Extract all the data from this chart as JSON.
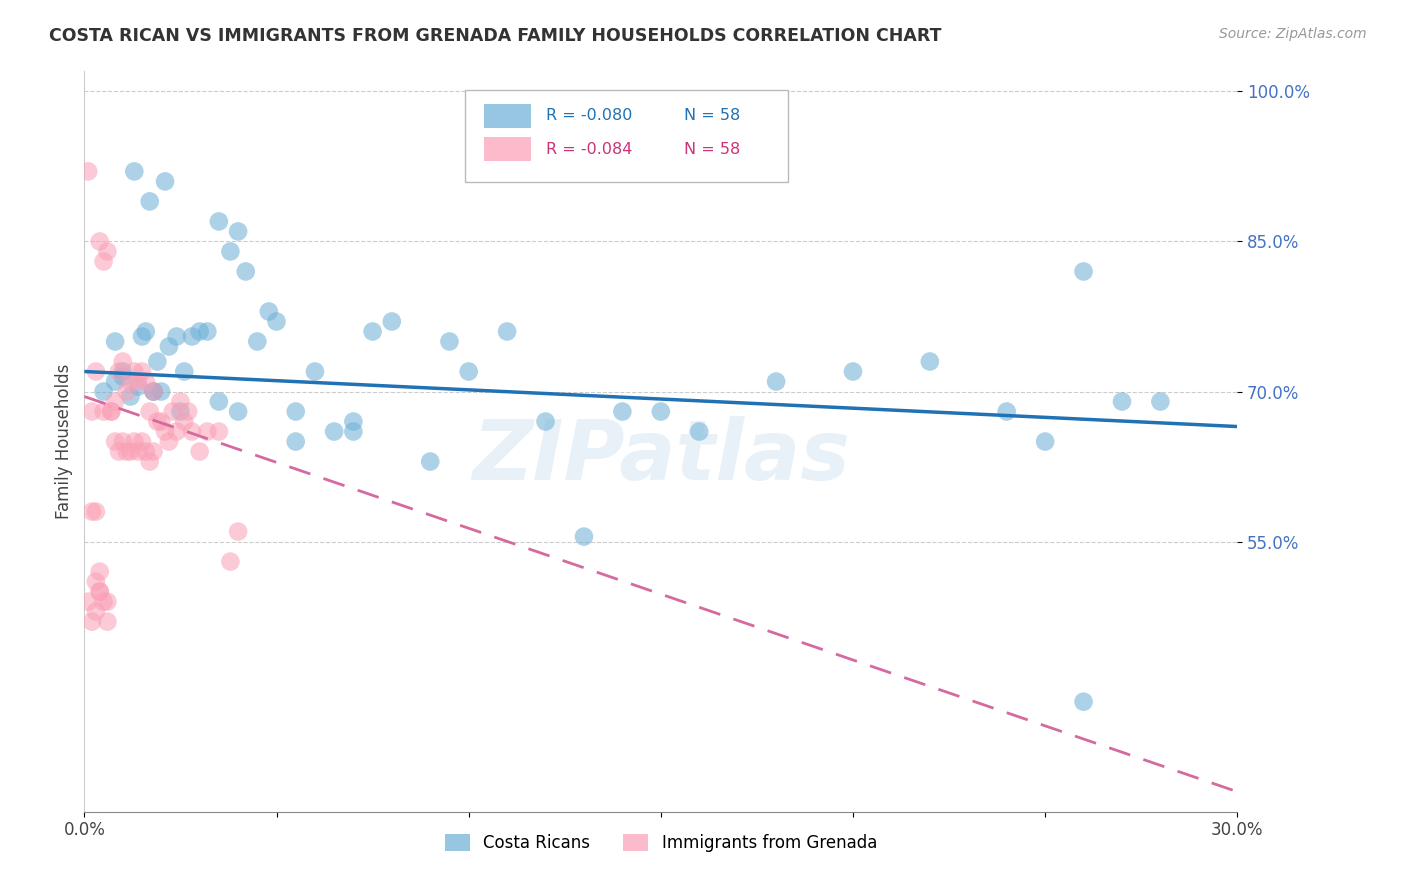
{
  "title": "COSTA RICAN VS IMMIGRANTS FROM GRENADA FAMILY HOUSEHOLDS CORRELATION CHART",
  "source": "Source: ZipAtlas.com",
  "ylabel": "Family Households",
  "xlim": [
    0.0,
    0.3
  ],
  "ylim": [
    0.28,
    1.02
  ],
  "legend_blue_r": "R = -0.080",
  "legend_blue_n": "N = 58",
  "legend_pink_r": "R = -0.084",
  "legend_pink_n": "N = 58",
  "blue_color": "#6baed6",
  "pink_color": "#fa9fb5",
  "trendline_blue_color": "#2171b5",
  "trendline_pink_color": "#d46a9f",
  "ytick_vals": [
    0.55,
    0.7,
    0.85,
    1.0
  ],
  "ytick_labels": [
    "55.0%",
    "70.0%",
    "85.0%",
    "100.0%"
  ],
  "watermark": "ZIPatlas",
  "blue_scatter_x": [
    0.005,
    0.008,
    0.01,
    0.012,
    0.014,
    0.015,
    0.016,
    0.018,
    0.019,
    0.02,
    0.022,
    0.024,
    0.025,
    0.026,
    0.028,
    0.03,
    0.032,
    0.035,
    0.038,
    0.04,
    0.042,
    0.045,
    0.048,
    0.05,
    0.055,
    0.06,
    0.065,
    0.07,
    0.075,
    0.08,
    0.09,
    0.095,
    0.1,
    0.11,
    0.12,
    0.13,
    0.14,
    0.15,
    0.16,
    0.18,
    0.2,
    0.22,
    0.24,
    0.25,
    0.26,
    0.013,
    0.017,
    0.021,
    0.035,
    0.04,
    0.055,
    0.07,
    0.26,
    0.27,
    0.28,
    0.008,
    0.01,
    0.018
  ],
  "blue_scatter_y": [
    0.7,
    0.71,
    0.715,
    0.695,
    0.705,
    0.755,
    0.76,
    0.7,
    0.73,
    0.7,
    0.745,
    0.755,
    0.68,
    0.72,
    0.755,
    0.76,
    0.76,
    0.87,
    0.84,
    0.86,
    0.82,
    0.75,
    0.78,
    0.77,
    0.68,
    0.72,
    0.66,
    0.67,
    0.76,
    0.77,
    0.63,
    0.75,
    0.72,
    0.76,
    0.67,
    0.555,
    0.68,
    0.68,
    0.66,
    0.71,
    0.72,
    0.73,
    0.68,
    0.65,
    0.82,
    0.92,
    0.89,
    0.91,
    0.69,
    0.68,
    0.65,
    0.66,
    0.39,
    0.69,
    0.69,
    0.75,
    0.72,
    0.7
  ],
  "pink_scatter_x": [
    0.001,
    0.002,
    0.002,
    0.003,
    0.003,
    0.004,
    0.004,
    0.005,
    0.005,
    0.006,
    0.006,
    0.007,
    0.007,
    0.008,
    0.008,
    0.009,
    0.009,
    0.01,
    0.01,
    0.011,
    0.011,
    0.012,
    0.012,
    0.013,
    0.013,
    0.014,
    0.014,
    0.015,
    0.015,
    0.016,
    0.016,
    0.017,
    0.017,
    0.018,
    0.018,
    0.019,
    0.02,
    0.021,
    0.022,
    0.023,
    0.024,
    0.025,
    0.026,
    0.027,
    0.028,
    0.03,
    0.032,
    0.035,
    0.038,
    0.04,
    0.002,
    0.003,
    0.004,
    0.005,
    0.006,
    0.003,
    0.004,
    0.001
  ],
  "pink_scatter_y": [
    0.92,
    0.68,
    0.58,
    0.72,
    0.58,
    0.85,
    0.5,
    0.83,
    0.68,
    0.84,
    0.49,
    0.68,
    0.68,
    0.69,
    0.65,
    0.72,
    0.64,
    0.73,
    0.65,
    0.7,
    0.64,
    0.71,
    0.64,
    0.72,
    0.65,
    0.71,
    0.64,
    0.72,
    0.65,
    0.71,
    0.64,
    0.68,
    0.63,
    0.7,
    0.64,
    0.67,
    0.67,
    0.66,
    0.65,
    0.68,
    0.66,
    0.69,
    0.67,
    0.68,
    0.66,
    0.64,
    0.66,
    0.66,
    0.53,
    0.56,
    0.47,
    0.48,
    0.52,
    0.49,
    0.47,
    0.51,
    0.5,
    0.49
  ]
}
